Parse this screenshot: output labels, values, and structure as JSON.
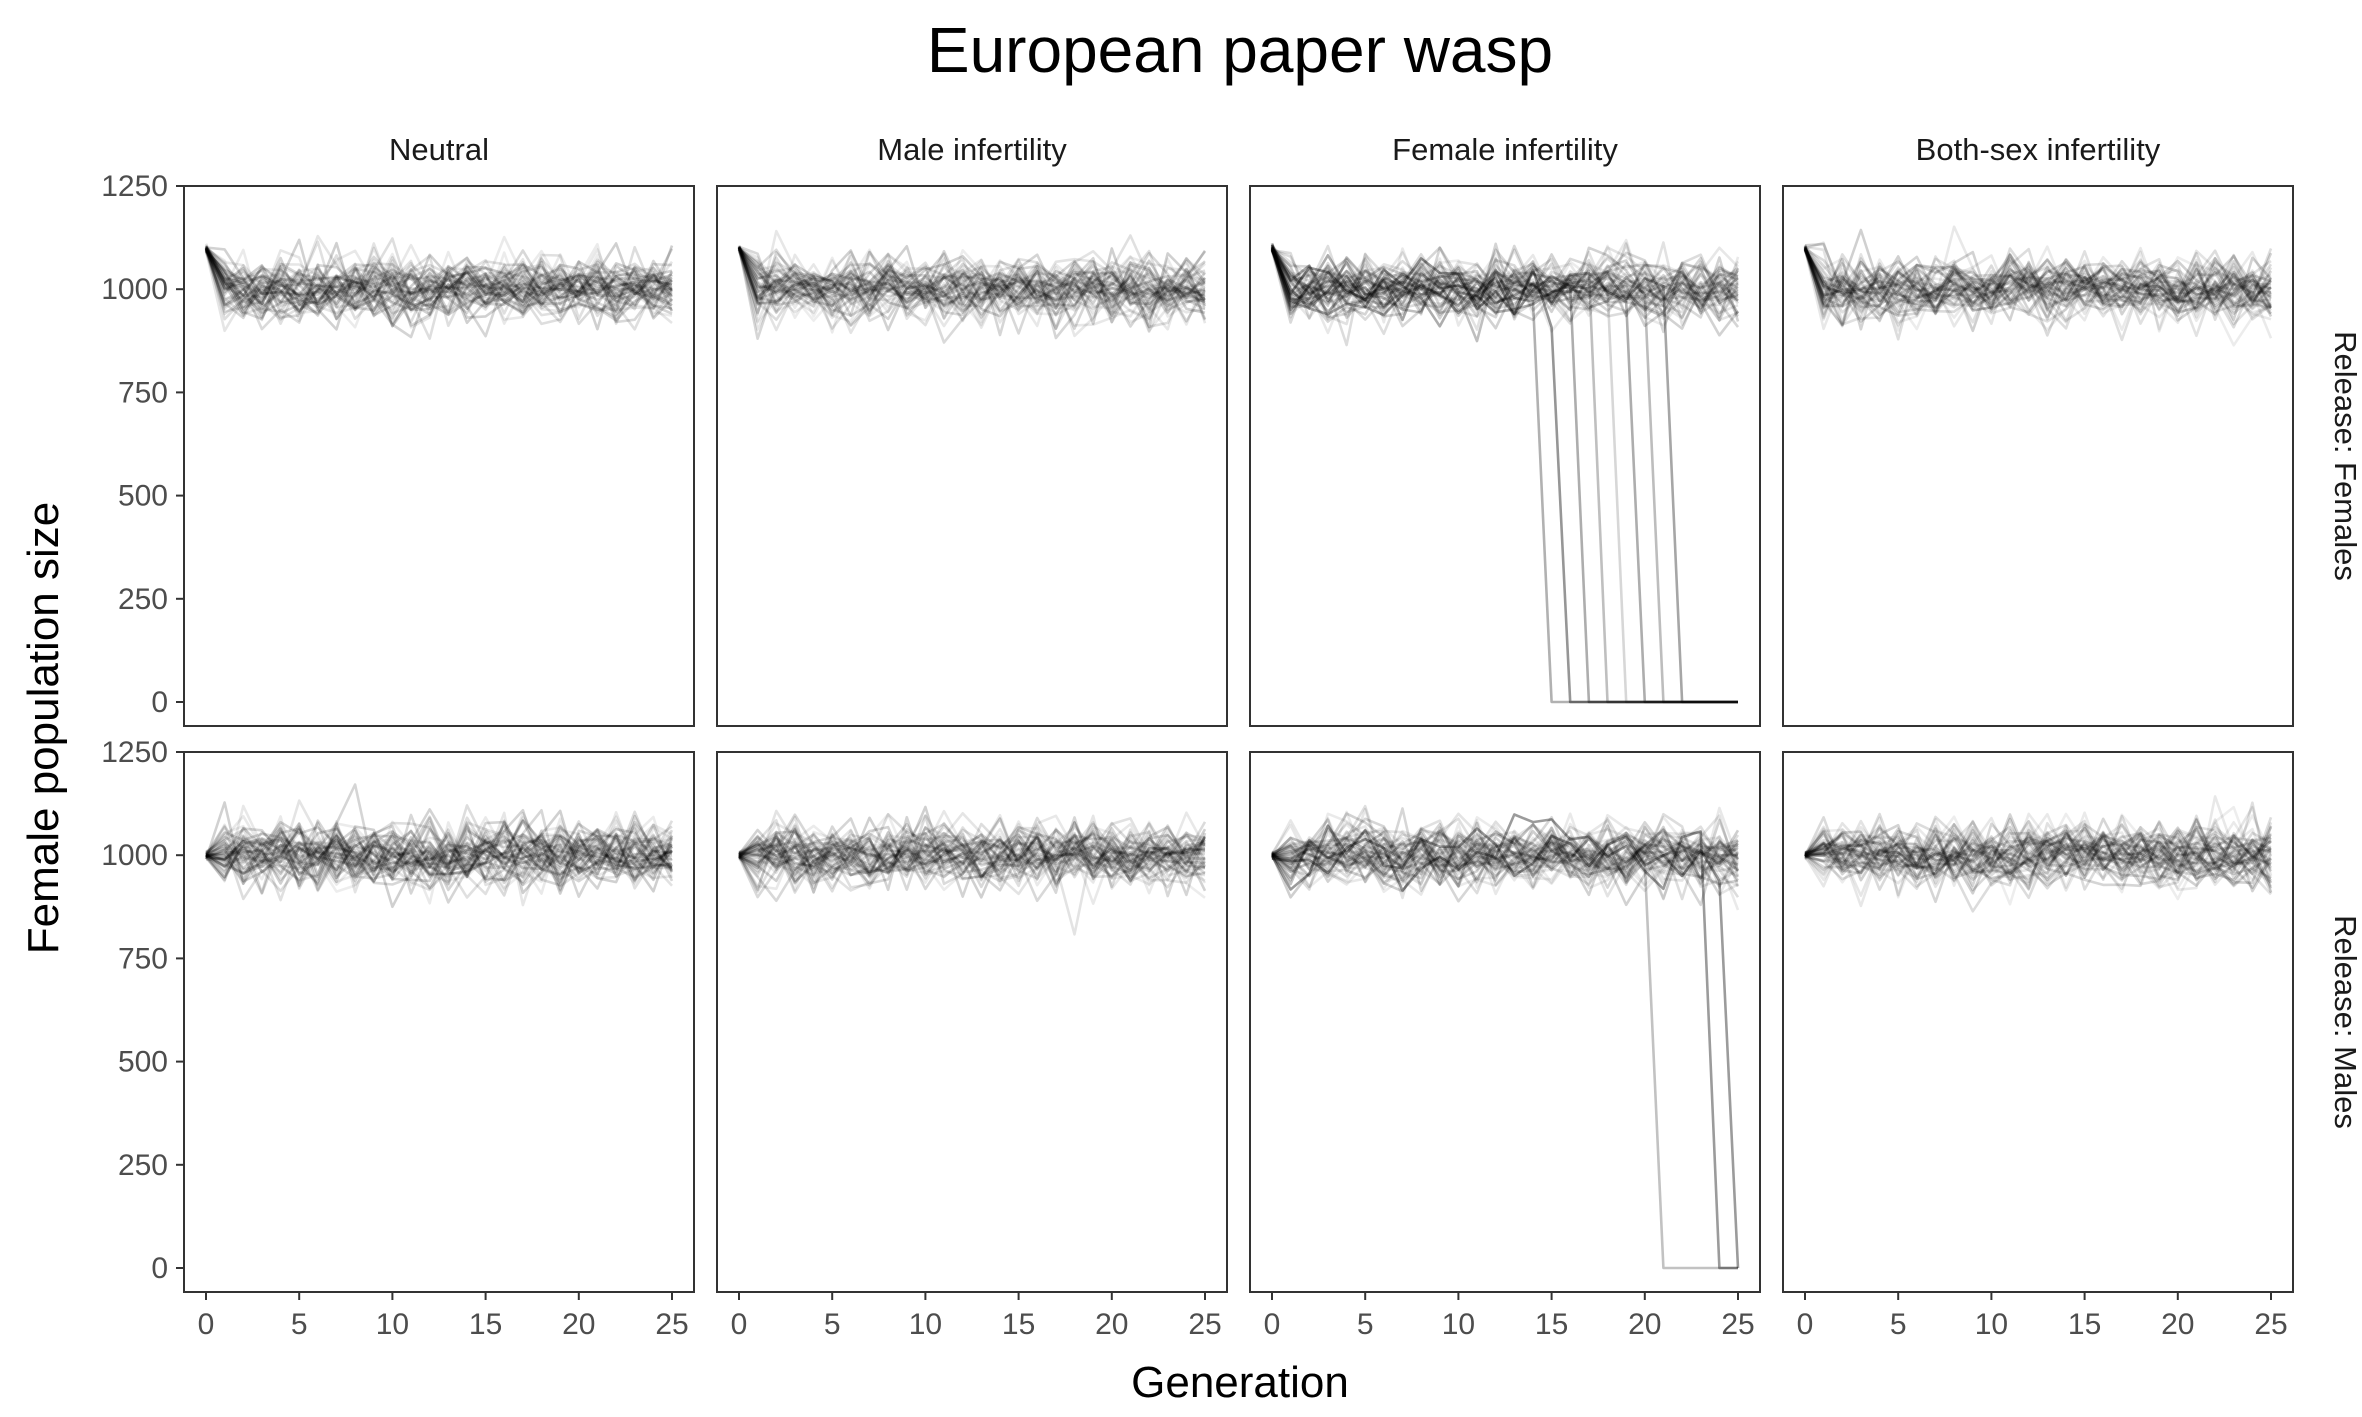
{
  "chart_data": {
    "type": "line",
    "title": "European paper wasp",
    "xlabel": "Generation",
    "ylabel": "Female population size",
    "xlim": [
      0,
      25
    ],
    "ylim": [
      0,
      1250
    ],
    "x_ticks": [
      0,
      5,
      10,
      15,
      20,
      25
    ],
    "y_ticks": [
      0,
      250,
      500,
      750,
      1000,
      1250
    ],
    "x_tick_labels": [
      "0",
      "5",
      "10",
      "15",
      "20",
      "25"
    ],
    "y_tick_labels": [
      "0",
      "250",
      "500",
      "750",
      "1000",
      "1250"
    ],
    "grid": false,
    "line_color": "#000000",
    "columns": [
      "Neutral",
      "Male infertility",
      "Female infertility",
      "Both-sex infertility"
    ],
    "rows": [
      "Release: Females",
      "Release: Males"
    ],
    "replicates_per_panel": 50,
    "panels": [
      {
        "row": "Release: Females",
        "column": "Neutral",
        "start": 1100,
        "mean_after": 1000,
        "spread": 40,
        "collapses": []
      },
      {
        "row": "Release: Females",
        "column": "Male infertility",
        "start": 1100,
        "mean_after": 1000,
        "spread": 40,
        "collapses": []
      },
      {
        "row": "Release: Females",
        "column": "Female infertility",
        "start": 1100,
        "mean_after": 1000,
        "spread": 40,
        "collapses": [
          {
            "drop_from": 14,
            "drop_to": 15
          },
          {
            "drop_from": 15,
            "drop_to": 16
          },
          {
            "drop_from": 16,
            "drop_to": 17
          },
          {
            "drop_from": 17,
            "drop_to": 18
          },
          {
            "drop_from": 18,
            "drop_to": 19
          },
          {
            "drop_from": 19,
            "drop_to": 20
          },
          {
            "drop_from": 20,
            "drop_to": 21
          },
          {
            "drop_from": 21,
            "drop_to": 22
          }
        ]
      },
      {
        "row": "Release: Females",
        "column": "Both-sex infertility",
        "start": 1100,
        "mean_after": 1000,
        "spread": 40,
        "collapses": []
      },
      {
        "row": "Release: Males",
        "column": "Neutral",
        "start": 1000,
        "mean_after": 1000,
        "spread": 40,
        "collapses": []
      },
      {
        "row": "Release: Males",
        "column": "Male infertility",
        "start": 1000,
        "mean_after": 1000,
        "spread": 40,
        "collapses": []
      },
      {
        "row": "Release: Males",
        "column": "Female infertility",
        "start": 1000,
        "mean_after": 1000,
        "spread": 40,
        "collapses": [
          {
            "drop_from": 20,
            "drop_to": 21
          },
          {
            "drop_from": 23,
            "drop_to": 24
          },
          {
            "drop_from": 24,
            "drop_to": 25
          }
        ]
      },
      {
        "row": "Release: Males",
        "column": "Both-sex infertility",
        "start": 1000,
        "mean_after": 1000,
        "spread": 40,
        "collapses": []
      }
    ]
  }
}
